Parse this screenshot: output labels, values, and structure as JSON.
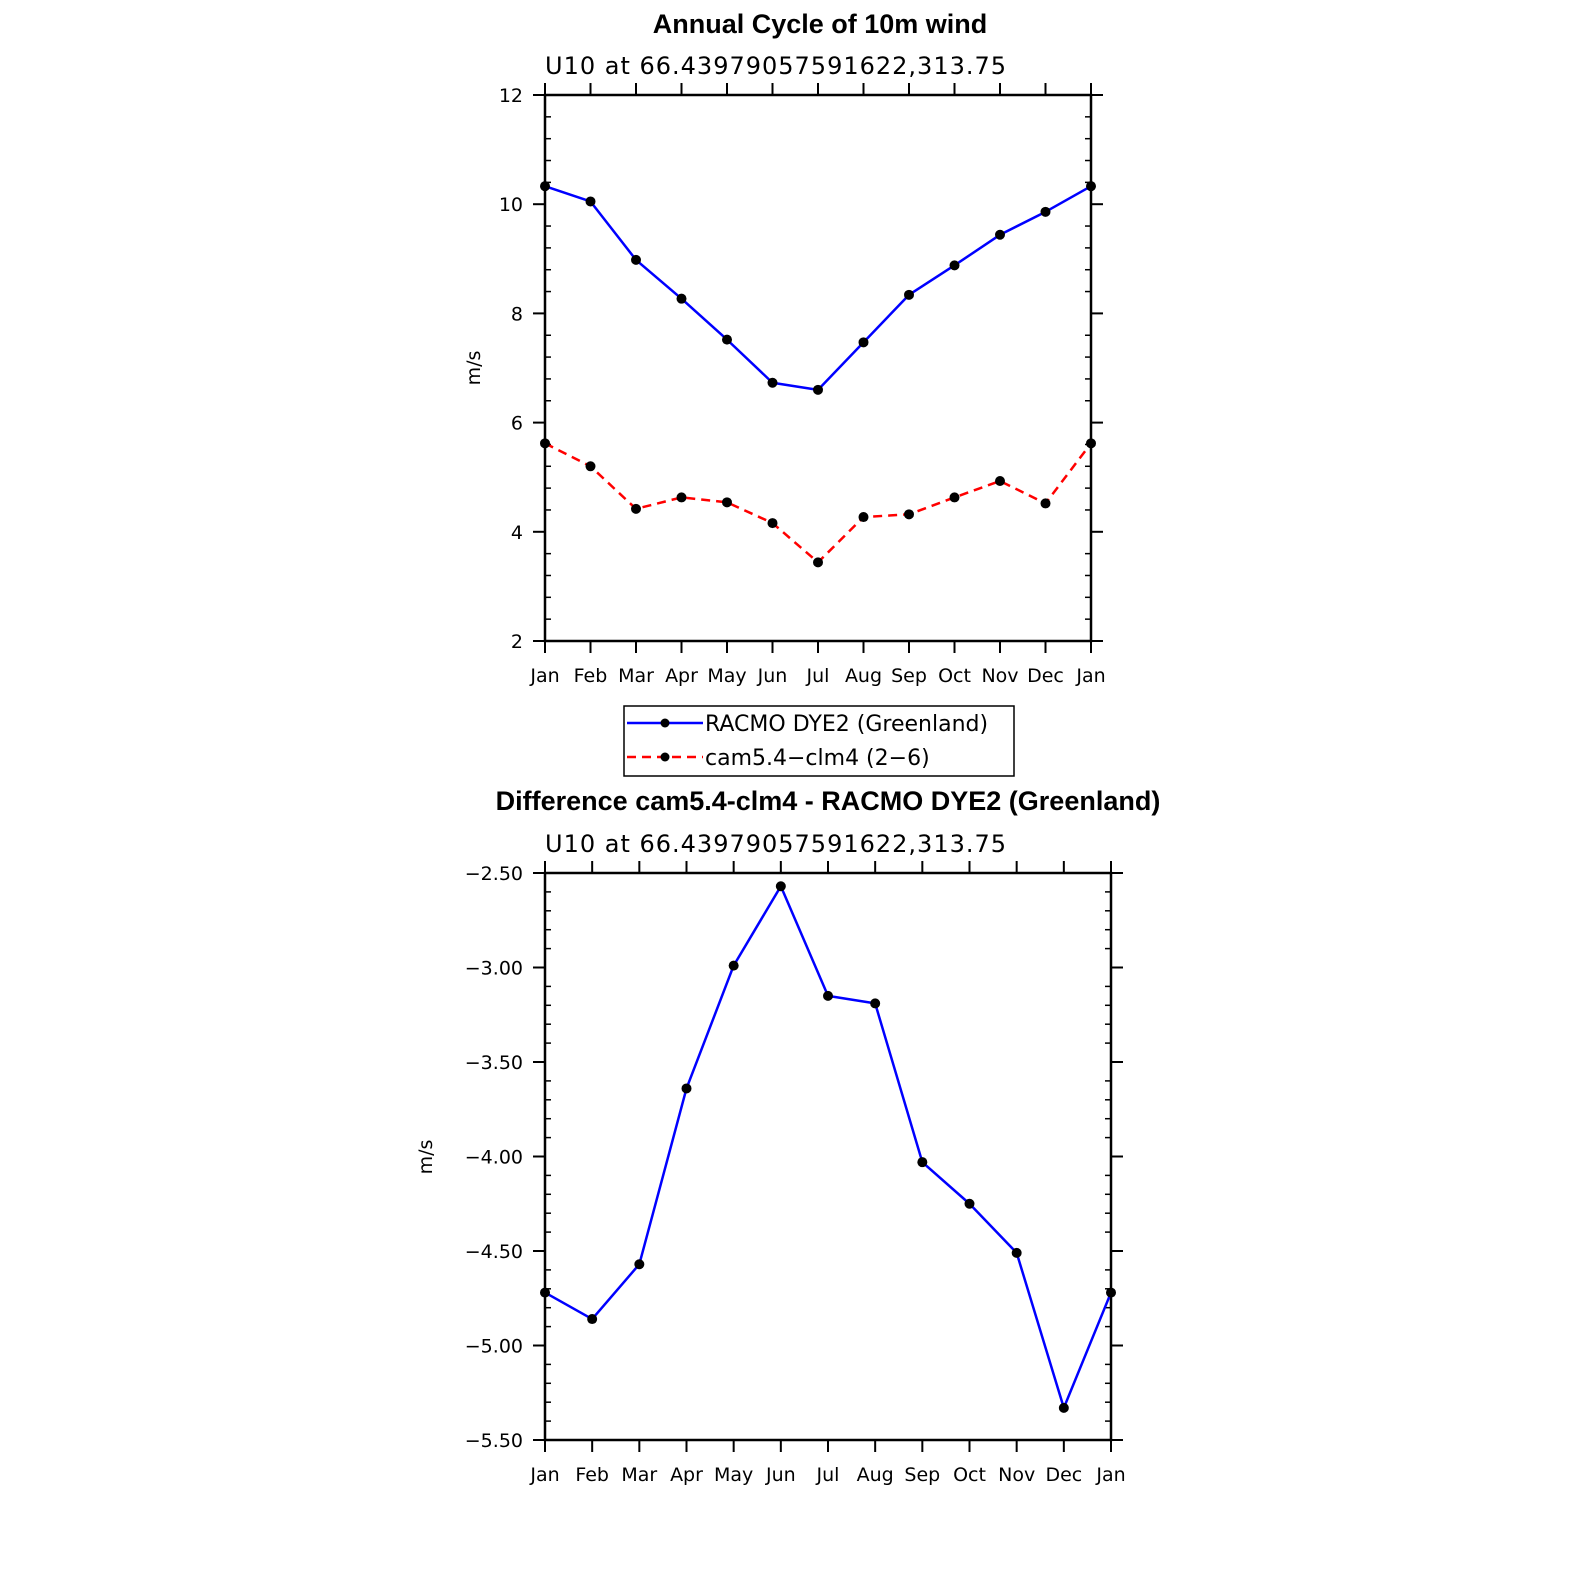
{
  "chart_data": [
    {
      "type": "line",
      "title": "Annual Cycle of 10m wind",
      "subtitle": "U10 at 66.43979057591622,313.75",
      "ylabel": "m/s",
      "xlabel": "",
      "ylim": [
        2,
        12
      ],
      "yticks": [
        "2",
        "4",
        "6",
        "8",
        "10",
        "12"
      ],
      "categories": [
        "Jan",
        "Feb",
        "Mar",
        "Apr",
        "May",
        "Jun",
        "Jul",
        "Aug",
        "Sep",
        "Oct",
        "Nov",
        "Dec",
        "Jan"
      ],
      "series": [
        {
          "name": "RACMO DYE2 (Greenland)",
          "color": "#0000ff",
          "dash": "solid",
          "values": [
            10.33,
            10.05,
            8.98,
            8.27,
            7.52,
            6.73,
            6.6,
            7.47,
            8.34,
            8.88,
            9.44,
            9.86,
            10.33
          ]
        },
        {
          "name": "cam5.4−clm4 (2−6)",
          "color": "#ff0000",
          "dash": "dashed",
          "values": [
            5.62,
            5.2,
            4.42,
            4.63,
            4.54,
            4.16,
            3.44,
            4.27,
            4.32,
            4.63,
            4.93,
            4.52,
            5.62
          ]
        }
      ],
      "legend": "below"
    },
    {
      "type": "line",
      "title": "Difference cam5.4-clm4 - RACMO DYE2 (Greenland)",
      "subtitle": "U10 at 66.43979057591622,313.75",
      "ylabel": "m/s",
      "xlabel": "",
      "ylim": [
        -5.5,
        -2.5
      ],
      "yticks": [
        "−5.50",
        "−5.00",
        "−4.50",
        "−4.00",
        "−3.50",
        "−3.00",
        "−2.50"
      ],
      "categories": [
        "Jan",
        "Feb",
        "Mar",
        "Apr",
        "May",
        "Jun",
        "Jul",
        "Aug",
        "Sep",
        "Oct",
        "Nov",
        "Dec",
        "Jan"
      ],
      "series": [
        {
          "color": "#0000ff",
          "dash": "solid",
          "values": [
            -4.72,
            -4.86,
            -4.57,
            -3.64,
            -2.99,
            -2.57,
            -3.15,
            -3.19,
            -4.03,
            -4.25,
            -4.51,
            -5.33,
            -4.72
          ]
        }
      ]
    }
  ]
}
